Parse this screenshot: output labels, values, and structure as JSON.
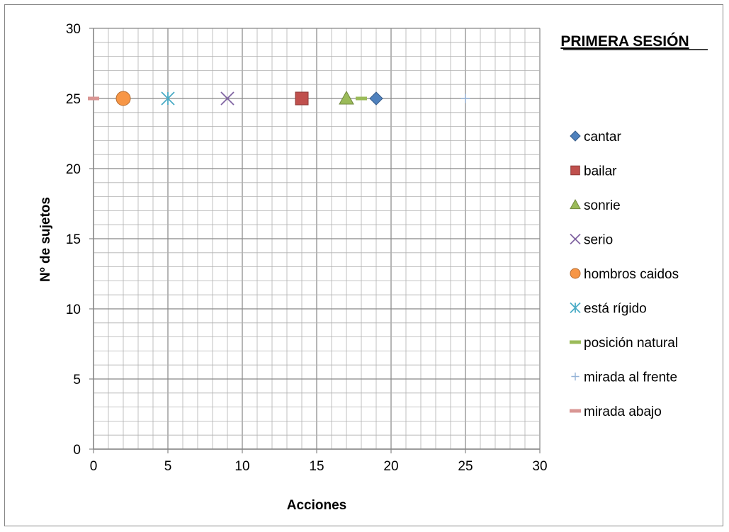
{
  "chart_data": {
    "type": "scatter",
    "title": "PRIMERA SESIÓN",
    "xlabel": "Acciones",
    "ylabel": "Nº de sujetos",
    "xlim": [
      0,
      30
    ],
    "ylim": [
      0,
      30
    ],
    "x_ticks": [
      "0",
      "5",
      "10",
      "15",
      "20",
      "25",
      "30"
    ],
    "y_ticks": [
      "0",
      "5",
      "10",
      "15",
      "20",
      "25",
      "30"
    ],
    "grid": true,
    "legend_position": "right",
    "series": [
      {
        "name": "cantar",
        "x": 19,
        "y": 25,
        "marker": "diamond",
        "color": "#4F81BD"
      },
      {
        "name": "bailar",
        "x": 14,
        "y": 25,
        "marker": "square",
        "color": "#C0504D"
      },
      {
        "name": "sonrie",
        "x": 17,
        "y": 25,
        "marker": "triangle",
        "color": "#9BBB59"
      },
      {
        "name": "serio",
        "x": 9,
        "y": 25,
        "marker": "x",
        "color": "#8064A2"
      },
      {
        "name": "hombros caidos",
        "x": 2,
        "y": 25,
        "marker": "circle",
        "color": "#F79646"
      },
      {
        "name": "está rígido",
        "x": 5,
        "y": 25,
        "marker": "star",
        "color": "#4BACC6"
      },
      {
        "name": "posición natural",
        "x": 18,
        "y": 25,
        "marker": "dash",
        "color": "#9BBB59"
      },
      {
        "name": "mirada al frente",
        "x": 25,
        "y": 25,
        "marker": "plus",
        "color": "#95B3D7"
      },
      {
        "name": "mirada abajo",
        "x": 0,
        "y": 25,
        "marker": "dash",
        "color": "#D99694"
      }
    ]
  }
}
